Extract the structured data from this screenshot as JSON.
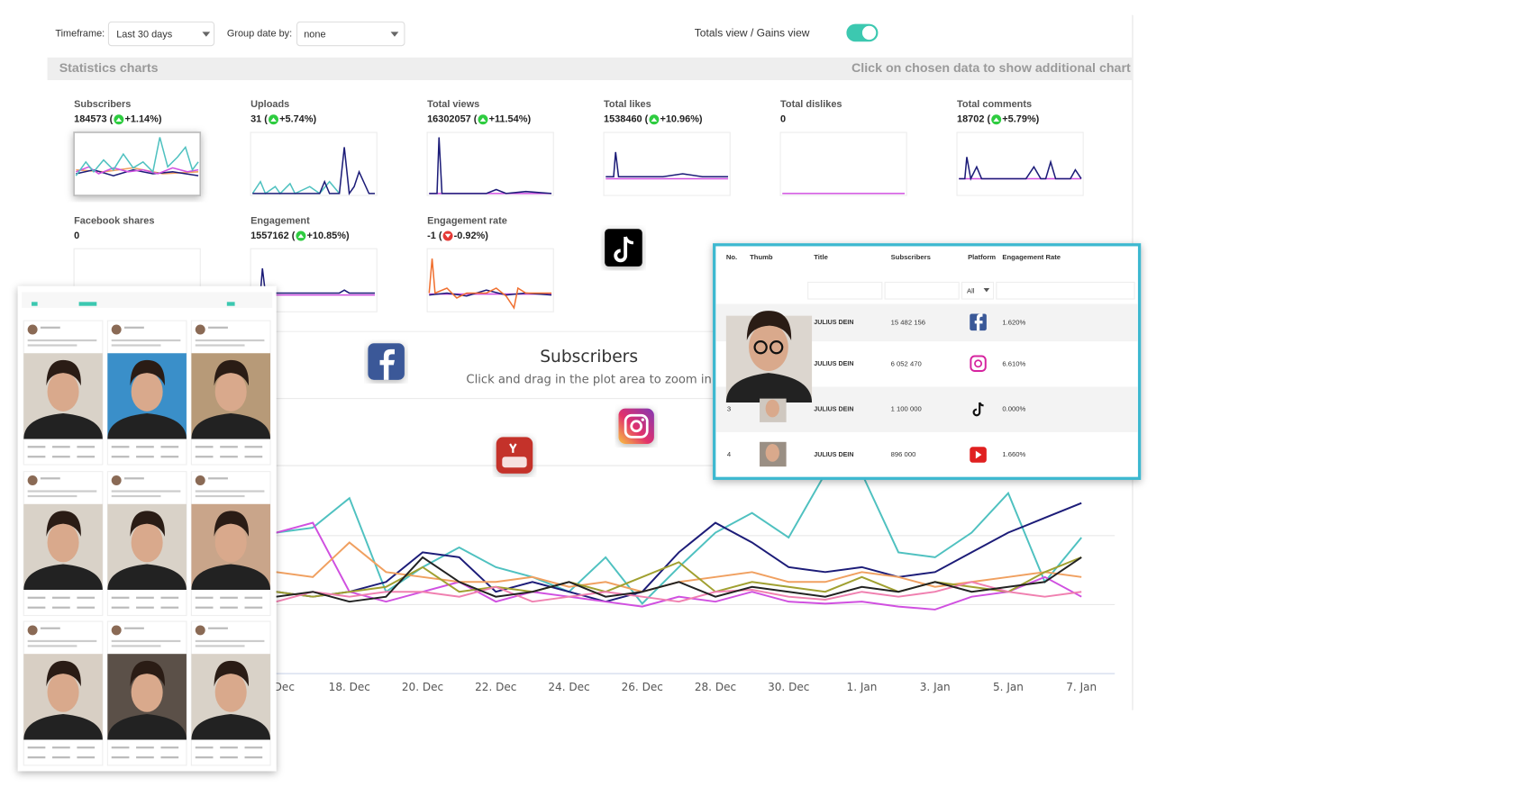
{
  "controls": {
    "timeframe_label": "Timeframe:",
    "timeframe": "Last 30 days",
    "group_label": "Group date by:",
    "group": "none",
    "view_toggle": "Totals view / Gains view"
  },
  "section": {
    "title": "Statistics charts",
    "hint": "Click on chosen data to show additional chart"
  },
  "stats": [
    {
      "label": "Subscribers",
      "value": "184573 (",
      "change": "+1.14%)"
    },
    {
      "label": "Uploads",
      "value": "31 (",
      "change": "+5.74%)"
    },
    {
      "label": "Total views",
      "value": "16302057 (",
      "change": "+11.54%)"
    },
    {
      "label": "Total likes",
      "value": "1538460 (",
      "change": "+10.96%)"
    },
    {
      "label": "Total dislikes",
      "value": "0"
    },
    {
      "label": "Total comments",
      "value": "18702 (",
      "change": "+5.79%)"
    },
    {
      "label": "Facebook shares",
      "value": "0"
    },
    {
      "label": "Engagement",
      "value": "1557162 (",
      "change": "+10.85%)"
    },
    {
      "label": "Engagement rate",
      "value": "-1 (",
      "change": "-0.92%)"
    }
  ],
  "chart_data": {
    "type": "line",
    "title": "Subscribers",
    "subtitle": "Click and drag in the plot area to zoom in",
    "categories": [
      "Dec",
      null,
      "18. Dec",
      null,
      "20. Dec",
      null,
      "22. Dec",
      null,
      "24. Dec",
      null,
      "26. Dec",
      null,
      "28. Dec",
      null,
      "30. Dec",
      null,
      "1. Jan",
      null,
      "3. Jan",
      null,
      "5. Jan",
      null,
      "7. Jan"
    ],
    "series": [
      {
        "color": "#4fc1c0",
        "values": [
          143,
          148,
          178,
          83,
          108,
          128,
          108,
          98,
          83,
          118,
          71,
          108,
          143,
          163,
          138,
          203,
          203,
          123,
          118,
          143,
          183,
          93,
          138
        ]
      },
      {
        "color": "#1c1c78",
        "values": [
          83,
          78,
          83,
          93,
          123,
          118,
          83,
          93,
          83,
          73,
          83,
          123,
          153,
          133,
          108,
          103,
          108,
          98,
          103,
          123,
          143,
          158,
          173
        ]
      },
      {
        "color": "#d050e0",
        "values": [
          143,
          153,
          83,
          73,
          83,
          93,
          73,
          83,
          78,
          73,
          68,
          78,
          73,
          83,
          73,
          71,
          73,
          68,
          65,
          78,
          83,
          98,
          78
        ]
      },
      {
        "color": "#f0a060",
        "values": [
          103,
          98,
          133,
          103,
          98,
          93,
          93,
          98,
          88,
          93,
          83,
          93,
          98,
          103,
          93,
          93,
          103,
          98,
          88,
          93,
          98,
          103,
          98
        ]
      },
      {
        "color": "#a0a030",
        "values": [
          83,
          78,
          83,
          88,
          108,
          83,
          88,
          83,
          93,
          83,
          98,
          113,
          83,
          93,
          88,
          83,
          98,
          83,
          93,
          88,
          83,
          103,
          118
        ]
      },
      {
        "color": "#f080b0",
        "values": [
          73,
          83,
          78,
          83,
          83,
          78,
          88,
          73,
          78,
          83,
          78,
          73,
          83,
          85,
          78,
          75,
          83,
          78,
          83,
          93,
          83,
          78,
          83
        ]
      },
      {
        "color": "#222222",
        "values": [
          78,
          83,
          73,
          78,
          118,
          93,
          78,
          83,
          93,
          78,
          83,
          93,
          78,
          88,
          83,
          78,
          88,
          83,
          93,
          83,
          88,
          93,
          118
        ]
      }
    ]
  },
  "table": {
    "columns": [
      "No.",
      "Thumb",
      "Title",
      "Subscribers",
      "Platform",
      "Engagement Rate"
    ],
    "filter": "All",
    "rows": [
      {
        "title": "JULIUS DEIN",
        "subscribers": "15 482 156",
        "rate": "1.620%"
      },
      {
        "title": "JULIUS DEIN",
        "subscribers": "6 052 470",
        "rate": "6.610%"
      },
      {
        "no": "3",
        "title": "JULIUS DEIN",
        "subscribers": "1 100 000",
        "rate": "0.000%"
      },
      {
        "no": "4",
        "title": "JULIUS DEIN",
        "subscribers": "896 000",
        "rate": "1.660%"
      }
    ]
  }
}
